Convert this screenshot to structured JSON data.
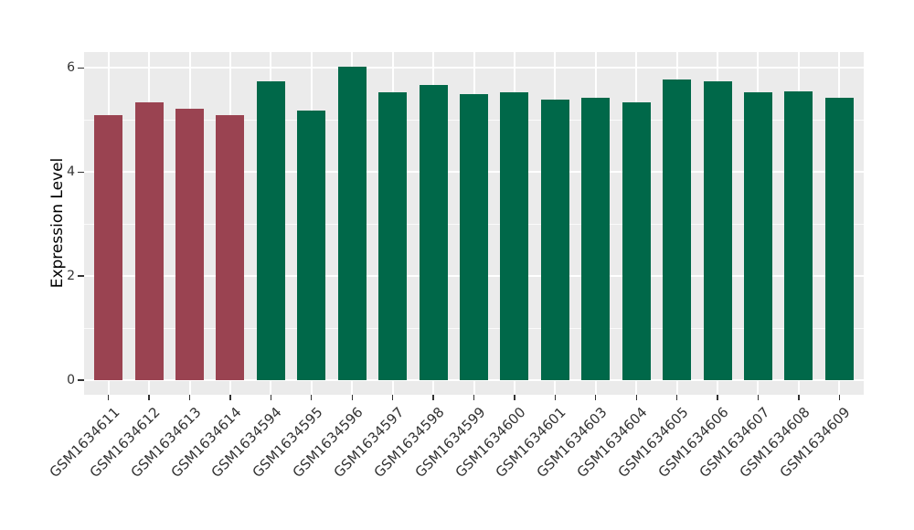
{
  "figure": {
    "background_color": "#FFFFFF",
    "panel_background_color": "#EBEBEB",
    "grid_color": "#FFFFFF",
    "tick_color": "#333333",
    "axis_text_color": "#333333",
    "axis_title_color": "#000000"
  },
  "chart_data": {
    "type": "bar",
    "title": "",
    "xlabel": "",
    "ylabel": "Expression Level",
    "ylim": [
      0,
      6.33
    ],
    "yticks": [
      0,
      2,
      4,
      6
    ],
    "yticks_minor": [
      1,
      3,
      5
    ],
    "grid": true,
    "legend": false,
    "categories": [
      "GSM1634611",
      "GSM1634612",
      "GSM1634613",
      "GSM1634614",
      "GSM1634594",
      "GSM1634595",
      "GSM1634596",
      "GSM1634597",
      "GSM1634598",
      "GSM1634599",
      "GSM1634600",
      "GSM1634601",
      "GSM1634603",
      "GSM1634604",
      "GSM1634605",
      "GSM1634606",
      "GSM1634607",
      "GSM1634608",
      "GSM1634609"
    ],
    "values": [
      5.09,
      5.34,
      5.22,
      5.09,
      5.74,
      5.18,
      6.02,
      5.54,
      5.68,
      5.5,
      5.54,
      5.39,
      5.43,
      5.34,
      5.77,
      5.74,
      5.54,
      5.55,
      5.43
    ],
    "groups": [
      "A",
      "A",
      "A",
      "A",
      "B",
      "B",
      "B",
      "B",
      "B",
      "B",
      "B",
      "B",
      "B",
      "B",
      "B",
      "B",
      "B",
      "B",
      "B"
    ],
    "group_colors": {
      "A": "#9A4351",
      "B": "#006849"
    }
  }
}
